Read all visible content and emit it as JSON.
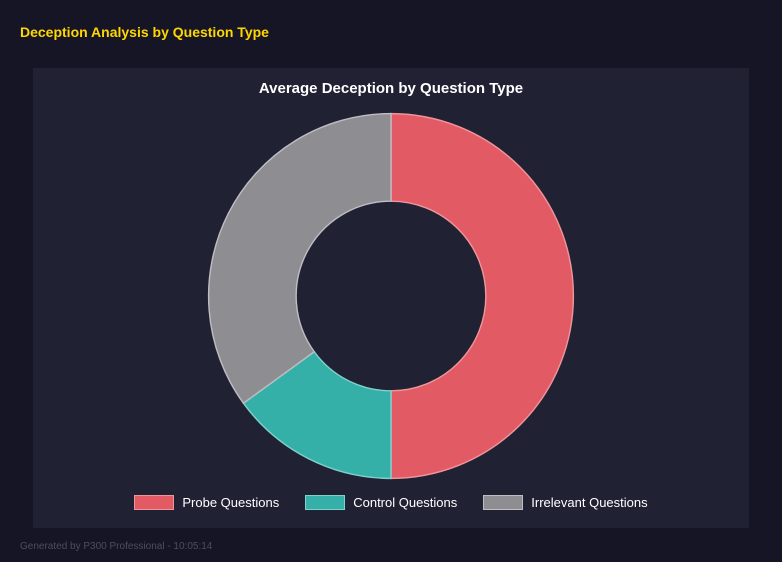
{
  "page": {
    "header_title": "Deception Analysis by Question Type",
    "footer_text": "Generated by P300 Professional - 10:05:14",
    "background_color": "#161526",
    "panel_color": "#212134",
    "accent_color": "#ffd700"
  },
  "chart": {
    "title": "Average Deception by Question Type"
  },
  "chart_data": {
    "type": "pie",
    "title": "Average Deception by Question Type",
    "labels": [
      "Probe Questions",
      "Control Questions",
      "Irrelevant Questions"
    ],
    "values": [
      50,
      15,
      35
    ],
    "colors": [
      "#e25b64",
      "#35b0a8",
      "#8d8d92"
    ],
    "stroke_colors": [
      "#f0949b",
      "#7fd2cb",
      "#bdbdc2"
    ],
    "donut": true,
    "inner_radius_ratio": 0.52,
    "start_angle_deg": 0,
    "direction": "clockwise",
    "legend_position": "bottom"
  }
}
